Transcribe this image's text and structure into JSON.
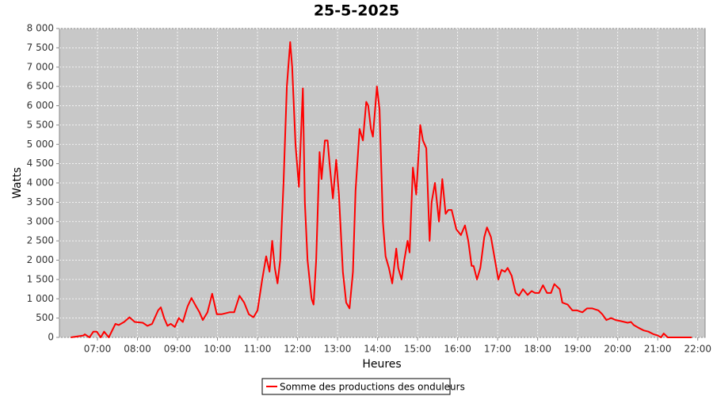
{
  "chart_data": {
    "type": "line",
    "title": "25-5-2025",
    "x_label": "Heures",
    "y_label": "Watts",
    "x": [
      "06:20",
      "06:39",
      "06:41",
      "06:48",
      "06:54",
      "06:59",
      "07:05",
      "07:10",
      "07:17",
      "07:27",
      "07:32",
      "07:40",
      "07:48",
      "07:56",
      "08:08",
      "08:15",
      "08:22",
      "08:31",
      "08:35",
      "08:40",
      "08:45",
      "08:50",
      "08:56",
      "09:02",
      "09:08",
      "09:15",
      "09:21",
      "09:28",
      "09:33",
      "09:38",
      "09:45",
      "09:52",
      "09:59",
      "10:06",
      "10:18",
      "10:25",
      "10:33",
      "10:40",
      "10:47",
      "10:54",
      "11:00",
      "11:07",
      "11:13",
      "11:18",
      "11:22",
      "11:26",
      "11:30",
      "11:34",
      "11:39",
      "11:44",
      "11:49",
      "11:52",
      "11:57",
      "12:02",
      "12:08",
      "12:11",
      "12:15",
      "12:21",
      "12:24",
      "12:28",
      "12:33",
      "12:36",
      "12:41",
      "12:45",
      "12:48",
      "12:53",
      "12:58",
      "13:02",
      "13:08",
      "13:13",
      "13:18",
      "13:23",
      "13:27",
      "13:33",
      "13:38",
      "13:43",
      "13:46",
      "13:50",
      "13:53",
      "13:59",
      "14:03",
      "14:08",
      "14:12",
      "14:17",
      "14:22",
      "14:28",
      "14:31",
      "14:36",
      "14:40",
      "14:45",
      "14:48",
      "14:53",
      "14:58",
      "15:04",
      "15:08",
      "15:13",
      "15:18",
      "15:21",
      "15:26",
      "15:32",
      "15:37",
      "15:42",
      "15:46",
      "15:51",
      "15:58",
      "16:05",
      "16:11",
      "16:16",
      "16:21",
      "16:24",
      "16:29",
      "16:34",
      "16:40",
      "16:44",
      "16:50",
      "16:56",
      "17:01",
      "17:06",
      "17:11",
      "17:15",
      "17:21",
      "17:27",
      "17:32",
      "17:38",
      "17:45",
      "17:51",
      "17:56",
      "18:02",
      "18:08",
      "18:14",
      "18:20",
      "18:25",
      "18:33",
      "18:37",
      "18:45",
      "18:52",
      "18:59",
      "19:07",
      "19:14",
      "19:22",
      "19:31",
      "19:37",
      "19:43",
      "19:50",
      "19:57",
      "20:05",
      "20:10",
      "20:15",
      "20:20",
      "20:24",
      "20:31",
      "20:39",
      "20:46",
      "20:54",
      "21:00",
      "21:05",
      "21:09",
      "21:15",
      "21:24",
      "21:51"
    ],
    "series": [
      {
        "name": "Somme des productions des onduleurs",
        "color": "#ff0000",
        "values": [
          0,
          50,
          80,
          0,
          150,
          150,
          0,
          150,
          0,
          350,
          320,
          400,
          520,
          400,
          380,
          300,
          350,
          700,
          780,
          500,
          300,
          350,
          270,
          500,
          400,
          800,
          1020,
          800,
          650,
          450,
          650,
          1130,
          600,
          600,
          650,
          650,
          1080,
          900,
          600,
          520,
          700,
          1500,
          2100,
          1700,
          2500,
          1800,
          1400,
          2000,
          4000,
          6500,
          7650,
          7000,
          5000,
          3900,
          6450,
          3500,
          2000,
          1000,
          850,
          2000,
          4800,
          4100,
          5100,
          5100,
          4500,
          3600,
          4600,
          3700,
          1700,
          900,
          750,
          1700,
          3800,
          5400,
          5100,
          6100,
          6000,
          5400,
          5200,
          6500,
          5900,
          3000,
          2100,
          1800,
          1400,
          2300,
          1800,
          1500,
          2000,
          2500,
          2200,
          4400,
          3700,
          5500,
          5100,
          4900,
          2500,
          3500,
          4000,
          3000,
          4100,
          3200,
          3300,
          3300,
          2800,
          2650,
          2900,
          2500,
          1850,
          1850,
          1500,
          1800,
          2600,
          2850,
          2600,
          2000,
          1500,
          1750,
          1700,
          1800,
          1600,
          1150,
          1080,
          1250,
          1100,
          1200,
          1150,
          1150,
          1350,
          1150,
          1150,
          1380,
          1250,
          900,
          850,
          700,
          700,
          650,
          750,
          750,
          700,
          600,
          450,
          500,
          450,
          420,
          400,
          380,
          400,
          320,
          250,
          180,
          150,
          80,
          50,
          0,
          100,
          0,
          0,
          0
        ]
      }
    ],
    "xlim": [
      "06:03",
      "22:11"
    ],
    "xticks": [
      "07:00",
      "08:00",
      "09:00",
      "10:00",
      "11:00",
      "12:00",
      "13:00",
      "14:00",
      "15:00",
      "16:00",
      "17:00",
      "18:00",
      "19:00",
      "20:00",
      "21:00",
      "22:00"
    ],
    "ylim": [
      0,
      8000
    ],
    "yticks": [
      0,
      500,
      {
        "value": 1000,
        "label": "1 000"
      },
      {
        "value": 1500,
        "label": "1 500"
      },
      {
        "value": 2000,
        "label": "2 000"
      },
      {
        "value": 2500,
        "label": "2 500"
      },
      {
        "value": 3000,
        "label": "3 000"
      },
      {
        "value": 3500,
        "label": "3 500"
      },
      {
        "value": 4000,
        "label": "4 000"
      },
      {
        "value": 4500,
        "label": "4 500"
      },
      {
        "value": 5000,
        "label": "5 000"
      },
      {
        "value": 5500,
        "label": "5 500"
      },
      {
        "value": 6000,
        "label": "6 000"
      },
      {
        "value": 6500,
        "label": "6 500"
      },
      {
        "value": 7000,
        "label": "7 000"
      },
      {
        "value": 7500,
        "label": "7 500"
      },
      {
        "value": 8000,
        "label": "8 000"
      }
    ],
    "grid": true
  }
}
